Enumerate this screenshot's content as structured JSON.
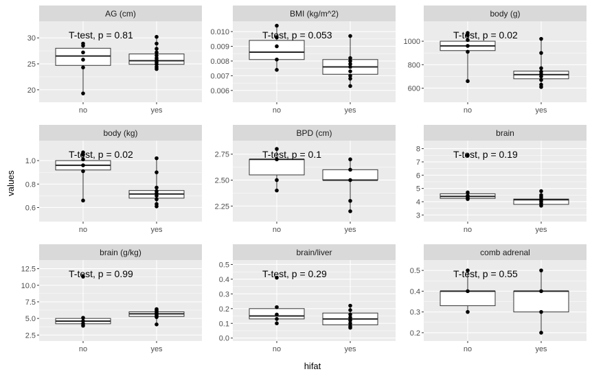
{
  "chart_data": {
    "type": "boxplot",
    "xlabel": "hifat",
    "ylabel": "values",
    "categories": [
      "no",
      "yes"
    ],
    "facets": [
      {
        "title": "AG (cm)",
        "annotation": "T-test, p = 0.81",
        "ylim": [
          17.6,
          33.2
        ],
        "yticks": [
          20,
          25,
          30
        ],
        "tick_labels": [
          "20",
          "25",
          "30"
        ],
        "groups": [
          {
            "name": "no",
            "box": [
              24.7,
              26.5,
              28.0
            ],
            "whisker": [
              19.3,
              28.9
            ],
            "points": [
              19.3,
              24.3,
              25.8,
              27.2,
              28.5,
              28.9
            ]
          },
          {
            "name": "yes",
            "box": [
              24.9,
              25.6,
              26.9
            ],
            "whisker": [
              24.0,
              30.2
            ],
            "points": [
              24.0,
              24.4,
              24.9,
              25.3,
              25.7,
              26.1,
              26.6,
              27.2,
              27.9,
              28.9,
              30.2
            ]
          }
        ]
      },
      {
        "title": "BMI (kg/m^2)",
        "annotation": "T-test, p = 0.053",
        "ylim": [
          0.0052,
          0.0107
        ],
        "yticks": [
          0.006,
          0.007,
          0.008,
          0.009,
          0.01
        ],
        "tick_labels": [
          "0.006",
          "0.007",
          "0.008",
          "0.009",
          "0.010"
        ],
        "groups": [
          {
            "name": "no",
            "box": [
              0.0081,
              0.0086,
              0.0094
            ],
            "whisker": [
              0.0074,
              0.0104
            ],
            "points": [
              0.0074,
              0.0081,
              0.009,
              0.0096,
              0.0104
            ]
          },
          {
            "name": "yes",
            "box": [
              0.0071,
              0.0076,
              0.0081
            ],
            "whisker": [
              0.0063,
              0.0097
            ],
            "points": [
              0.0063,
              0.0068,
              0.007,
              0.0073,
              0.0076,
              0.0078,
              0.008,
              0.0082,
              0.0097
            ]
          }
        ]
      },
      {
        "title": "body (g)",
        "annotation": "T-test, p = 0.02",
        "ylim": [
          480,
          1170
        ],
        "yticks": [
          600,
          800,
          1000
        ],
        "tick_labels": [
          "600",
          "800",
          "1000"
        ],
        "groups": [
          {
            "name": "no",
            "box": [
              920,
              960,
              1000
            ],
            "whisker": [
              660,
              1070
            ],
            "points": [
              660,
              910,
              960,
              1010,
              1050,
              1070
            ]
          },
          {
            "name": "yes",
            "box": [
              680,
              715,
              745
            ],
            "whisker": [
              610,
              1020
            ],
            "points": [
              610,
              630,
              670,
              700,
              720,
              740,
              770,
              900,
              1020
            ]
          }
        ]
      },
      {
        "title": "body (kg)",
        "annotation": "T-test, p = 0.02",
        "ylim": [
          0.48,
          1.17
        ],
        "yticks": [
          0.6,
          0.8,
          1.0
        ],
        "tick_labels": [
          "0.6",
          "0.8",
          "1.0"
        ],
        "groups": [
          {
            "name": "no",
            "box": [
              0.92,
              0.96,
              1.0
            ],
            "whisker": [
              0.66,
              1.07
            ],
            "points": [
              0.66,
              0.91,
              0.96,
              1.01,
              1.05,
              1.07
            ]
          },
          {
            "name": "yes",
            "box": [
              0.68,
              0.715,
              0.745
            ],
            "whisker": [
              0.61,
              1.02
            ],
            "points": [
              0.61,
              0.63,
              0.67,
              0.7,
              0.72,
              0.74,
              0.77,
              0.9,
              1.02
            ]
          }
        ]
      },
      {
        "title": "BPD (cm)",
        "annotation": "T-test, p = 0.1",
        "ylim": [
          2.1,
          2.88
        ],
        "yticks": [
          2.25,
          2.5,
          2.75
        ],
        "tick_labels": [
          "2.25",
          "2.50",
          "2.75"
        ],
        "groups": [
          {
            "name": "no",
            "box": [
              2.55,
              2.7,
              2.7
            ],
            "whisker": [
              2.4,
              2.8
            ],
            "points": [
              2.4,
              2.5,
              2.7,
              2.8
            ]
          },
          {
            "name": "yes",
            "box": [
              2.5,
              2.5,
              2.6
            ],
            "whisker": [
              2.2,
              2.7
            ],
            "points": [
              2.2,
              2.3,
              2.5,
              2.6,
              2.7
            ]
          }
        ]
      },
      {
        "title": "brain",
        "annotation": "T-test, p = 0.19",
        "ylim": [
          2.5,
          8.6
        ],
        "yticks": [
          3,
          4,
          5,
          6,
          7,
          8
        ],
        "tick_labels": [
          "3",
          "4",
          "5",
          "6",
          "7",
          "8"
        ],
        "groups": [
          {
            "name": "no",
            "box": [
              4.25,
              4.4,
              4.6
            ],
            "whisker": [
              4.2,
              4.7
            ],
            "points": [
              4.2,
              4.3,
              4.45,
              4.7,
              7.5
            ]
          },
          {
            "name": "yes",
            "box": [
              3.8,
              4.15,
              4.2
            ],
            "whisker": [
              3.7,
              4.8
            ],
            "points": [
              3.7,
              3.85,
              4.0,
              4.1,
              4.2,
              4.35,
              4.5,
              4.8
            ]
          }
        ]
      },
      {
        "title": "brain (g/kg)",
        "annotation": "T-test, p = 0.99",
        "ylim": [
          1.6,
          13.8
        ],
        "yticks": [
          2.5,
          5.0,
          7.5,
          10.0,
          12.5
        ],
        "tick_labels": [
          "2.5",
          "5.0",
          "7.5",
          "10.0",
          "12.5"
        ],
        "groups": [
          {
            "name": "no",
            "box": [
              4.2,
              4.6,
              5.0
            ],
            "whisker": [
              3.9,
              5.1
            ],
            "points": [
              3.9,
              4.2,
              4.6,
              5.1,
              11.3
            ]
          },
          {
            "name": "yes",
            "box": [
              5.3,
              5.7,
              6.0
            ],
            "whisker": [
              4.1,
              6.4
            ],
            "points": [
              4.1,
              5.2,
              5.4,
              5.6,
              5.8,
              6.0,
              6.2,
              6.4
            ]
          }
        ]
      },
      {
        "title": "brain/liver",
        "annotation": "T-test, p = 0.29",
        "ylim": [
          -0.02,
          0.53
        ],
        "yticks": [
          0.0,
          0.1,
          0.2,
          0.3,
          0.4,
          0.5
        ],
        "tick_labels": [
          "0.0",
          "0.1",
          "0.2",
          "0.3",
          "0.4",
          "0.5"
        ],
        "groups": [
          {
            "name": "no",
            "box": [
              0.13,
              0.15,
              0.2
            ],
            "whisker": [
              0.1,
              0.21
            ],
            "points": [
              0.1,
              0.13,
              0.16,
              0.21,
              0.41
            ]
          },
          {
            "name": "yes",
            "box": [
              0.09,
              0.13,
              0.17
            ],
            "whisker": [
              0.07,
              0.22
            ],
            "points": [
              0.07,
              0.08,
              0.1,
              0.12,
              0.14,
              0.16,
              0.19,
              0.22
            ]
          }
        ]
      },
      {
        "title": "comb adrenal",
        "annotation": "T-test, p = 0.55",
        "ylim": [
          0.16,
          0.55
        ],
        "yticks": [
          0.2,
          0.3,
          0.4,
          0.5
        ],
        "tick_labels": [
          "0.2",
          "0.3",
          "0.4",
          "0.5"
        ],
        "groups": [
          {
            "name": "no",
            "box": [
              0.33,
              0.4,
              0.4
            ],
            "whisker": [
              0.3,
              0.5
            ],
            "points": [
              0.3,
              0.4,
              0.5
            ]
          },
          {
            "name": "yes",
            "box": [
              0.3,
              0.4,
              0.4
            ],
            "whisker": [
              0.2,
              0.5
            ],
            "points": [
              0.2,
              0.3,
              0.4,
              0.5
            ]
          }
        ]
      }
    ]
  }
}
